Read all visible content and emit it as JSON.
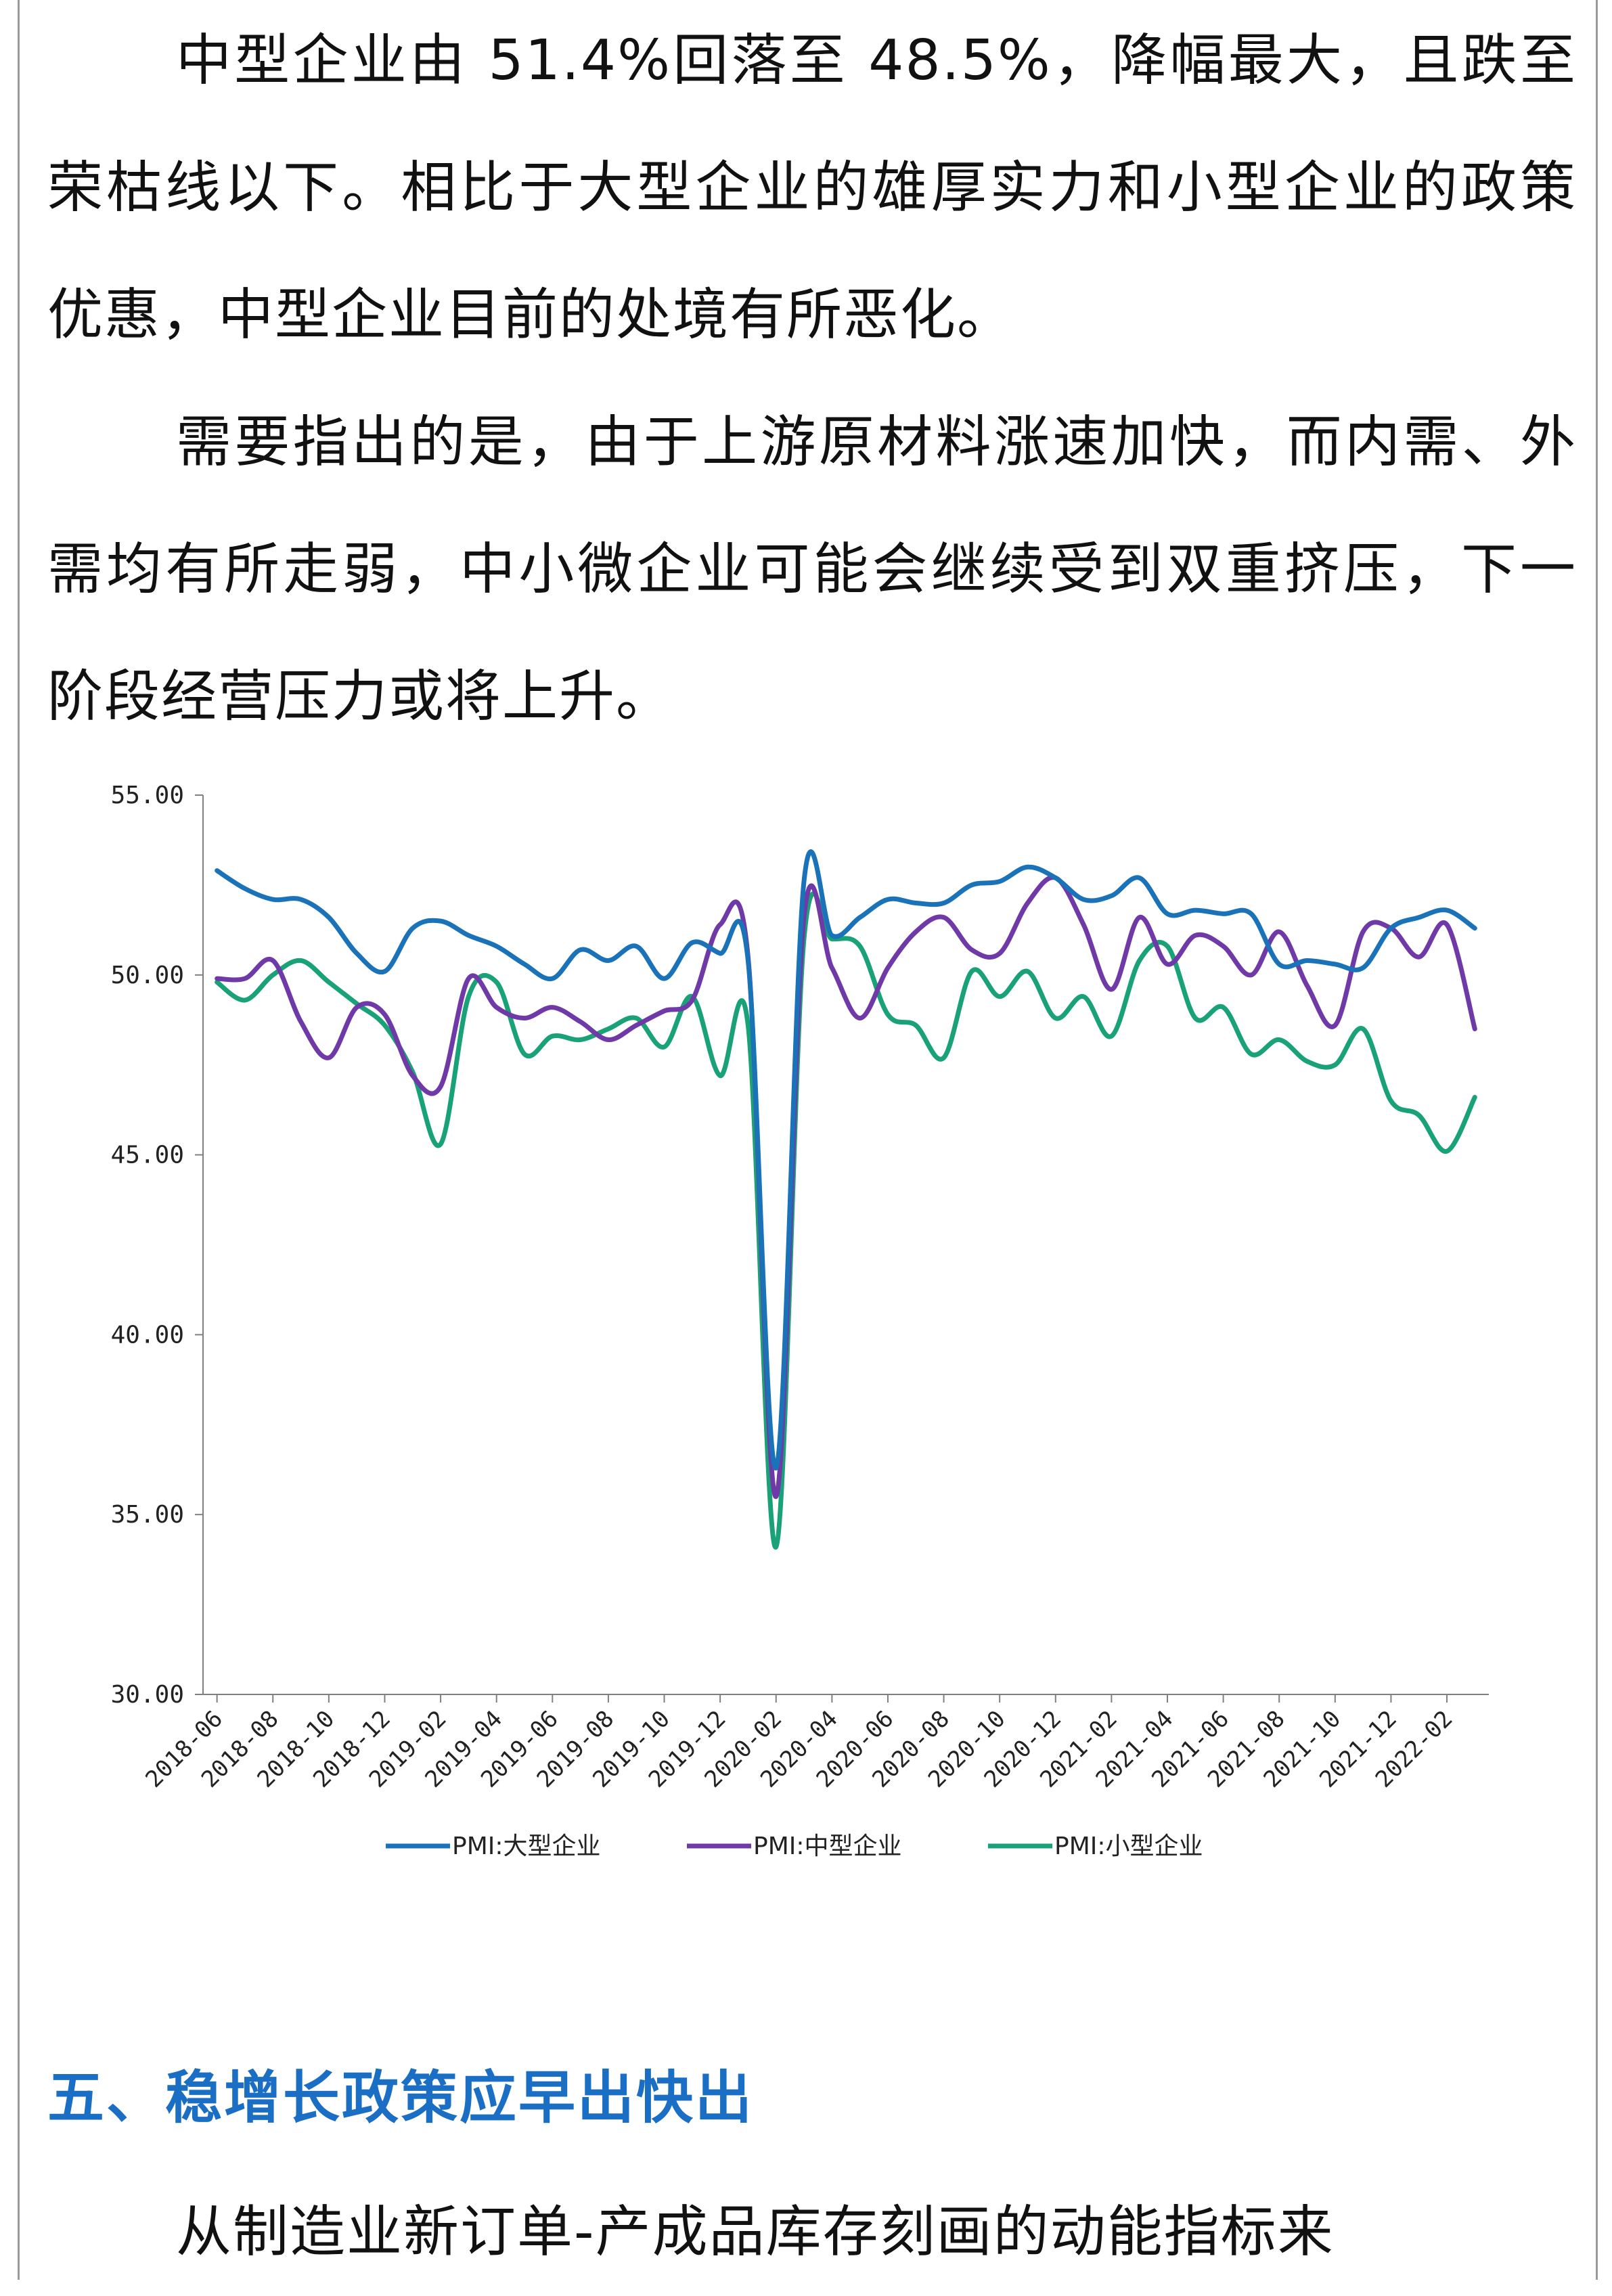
{
  "paragraphs": {
    "p1": "中型企业由 51.4%回落至 48.5%，降幅最大，且跌至荣枯线以下。相比于大型企业的雄厚实力和小型企业的政策优惠，中型企业目前的处境有所恶化。",
    "p2": "需要指出的是，由于上游原材料涨速加快，而内需、外需均有所走弱，中小微企业可能会继续受到双重挤压，下一阶段经营压力或将上升。",
    "p3": "从制造业新订单-产成品库存刻画的动能指标来"
  },
  "section_heading": "五、稳增长政策应早出快出",
  "chart_data": {
    "type": "line",
    "title": "",
    "xlabel": "",
    "ylabel": "",
    "ylim": [
      30,
      55
    ],
    "y_ticks": [
      "55.00",
      "50.00",
      "45.00",
      "40.00",
      "35.00",
      "30.00"
    ],
    "x_ticks": [
      "2018-06",
      "2018-08",
      "2018-10",
      "2018-12",
      "2019-02",
      "2019-04",
      "2019-06",
      "2019-08",
      "2019-10",
      "2019-12",
      "2020-02",
      "2020-04",
      "2020-06",
      "2020-08",
      "2020-10",
      "2020-12",
      "2021-02",
      "2021-04",
      "2021-06",
      "2021-08",
      "2021-10",
      "2021-12",
      "2022-02"
    ],
    "x": [
      "2018-06",
      "2018-07",
      "2018-08",
      "2018-09",
      "2018-10",
      "2018-11",
      "2018-12",
      "2019-01",
      "2019-02",
      "2019-03",
      "2019-04",
      "2019-05",
      "2019-06",
      "2019-07",
      "2019-08",
      "2019-09",
      "2019-10",
      "2019-11",
      "2019-12",
      "2020-01",
      "2020-02",
      "2020-03",
      "2020-04",
      "2020-05",
      "2020-06",
      "2020-07",
      "2020-08",
      "2020-09",
      "2020-10",
      "2020-11",
      "2020-12",
      "2021-01",
      "2021-02",
      "2021-03",
      "2021-04",
      "2021-05",
      "2021-06",
      "2021-07",
      "2021-08",
      "2021-09",
      "2021-10",
      "2021-11",
      "2021-12",
      "2022-01",
      "2022-02",
      "2022-03"
    ],
    "series": [
      {
        "name": "PMI:大型企业",
        "color": "#1a72b8",
        "values": [
          52.9,
          52.4,
          52.1,
          52.1,
          51.6,
          50.6,
          50.1,
          51.3,
          51.5,
          51.1,
          50.8,
          50.3,
          49.9,
          50.7,
          50.4,
          50.8,
          49.9,
          50.9,
          50.6,
          50.4,
          36.3,
          52.6,
          51.1,
          51.6,
          52.1,
          52.0,
          52.0,
          52.5,
          52.6,
          53.0,
          52.7,
          52.1,
          52.2,
          52.7,
          51.7,
          51.8,
          51.7,
          51.7,
          50.3,
          50.4,
          50.3,
          50.2,
          51.3,
          51.6,
          51.8,
          51.3
        ]
      },
      {
        "name": "PMI:中型企业",
        "color": "#6f3aa8",
        "values": [
          49.9,
          49.9,
          50.4,
          48.7,
          47.7,
          49.1,
          48.9,
          47.2,
          46.9,
          49.9,
          49.1,
          48.8,
          49.1,
          48.7,
          48.2,
          48.6,
          49.0,
          49.3,
          51.4,
          50.5,
          35.5,
          51.6,
          50.2,
          48.8,
          50.2,
          51.2,
          51.6,
          50.7,
          50.6,
          52.0,
          52.7,
          51.4,
          49.6,
          51.6,
          50.3,
          51.1,
          50.8,
          50.0,
          51.2,
          49.7,
          48.6,
          51.2,
          51.3,
          50.5,
          51.4,
          48.5
        ]
      },
      {
        "name": "PMI:小型企业",
        "color": "#19a277",
        "values": [
          49.8,
          49.3,
          50.0,
          50.4,
          49.8,
          49.2,
          48.6,
          47.3,
          45.3,
          49.4,
          49.8,
          47.8,
          48.3,
          48.2,
          48.5,
          48.8,
          48.0,
          49.4,
          47.2,
          48.6,
          34.1,
          51.0,
          51.0,
          50.8,
          48.9,
          48.6,
          47.7,
          50.1,
          49.4,
          50.1,
          48.8,
          49.4,
          48.3,
          50.4,
          50.8,
          48.8,
          49.1,
          47.8,
          48.2,
          47.6,
          47.5,
          48.5,
          46.5,
          46.1,
          45.1,
          46.6
        ]
      }
    ],
    "legend_position": "bottom",
    "grid": false
  }
}
